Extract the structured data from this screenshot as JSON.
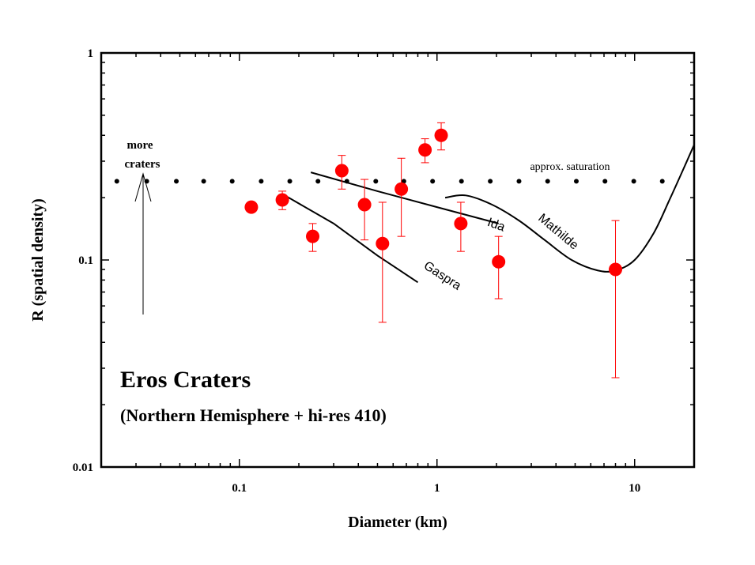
{
  "chart_data": {
    "type": "scatter",
    "title": "Eros Craters",
    "subtitle": "(Northern Hemisphere + hi-res 410)",
    "xlabel": "Diameter (km)",
    "ylabel": "R (spatial density)",
    "x_scale": "log",
    "y_scale": "log",
    "xlim": [
      0.02,
      20
    ],
    "ylim": [
      0.01,
      1
    ],
    "x_ticks": [
      {
        "value": 0.1,
        "label": "0.1"
      },
      {
        "value": 1,
        "label": "1"
      },
      {
        "value": 10,
        "label": "10"
      }
    ],
    "y_ticks": [
      {
        "value": 0.01,
        "label": "0.01"
      },
      {
        "value": 0.1,
        "label": "0.1"
      },
      {
        "value": 1,
        "label": "1"
      }
    ],
    "grid": false,
    "marker_color": "#ff0000",
    "points": [
      {
        "x": 0.115,
        "y": 0.18
      },
      {
        "x": 0.165,
        "y": 0.195,
        "ylo": 0.175,
        "yhi": 0.215
      },
      {
        "x": 0.235,
        "y": 0.13,
        "ylo": 0.11,
        "yhi": 0.15
      },
      {
        "x": 0.33,
        "y": 0.27,
        "ylo": 0.22,
        "yhi": 0.32
      },
      {
        "x": 0.43,
        "y": 0.185,
        "ylo": 0.125,
        "yhi": 0.245
      },
      {
        "x": 0.53,
        "y": 0.12,
        "ylo": 0.05,
        "yhi": 0.19
      },
      {
        "x": 0.66,
        "y": 0.22,
        "ylo": 0.13,
        "yhi": 0.31
      },
      {
        "x": 0.87,
        "y": 0.34,
        "ylo": 0.295,
        "yhi": 0.385
      },
      {
        "x": 1.05,
        "y": 0.4,
        "ylo": 0.34,
        "yhi": 0.46
      },
      {
        "x": 1.32,
        "y": 0.15,
        "ylo": 0.11,
        "yhi": 0.19
      },
      {
        "x": 2.05,
        "y": 0.098,
        "ylo": 0.065,
        "yhi": 0.13
      },
      {
        "x": 8.0,
        "y": 0.09,
        "ylo": 0.027,
        "yhi": 0.155
      }
    ],
    "saturation": {
      "label": "approx. saturation",
      "y": 0.24,
      "x": [
        0.024,
        0.034,
        0.048,
        0.066,
        0.092,
        0.129,
        0.18,
        0.25,
        0.35,
        0.49,
        0.68,
        0.95,
        1.33,
        1.86,
        2.6,
        3.63,
        5.07,
        7.08,
        9.9,
        13.8
      ]
    },
    "reference_curves": [
      {
        "name": "Gaspra",
        "points": [
          [
            0.17,
            0.205
          ],
          [
            0.3,
            0.15
          ],
          [
            0.5,
            0.105
          ],
          [
            0.8,
            0.078
          ]
        ]
      },
      {
        "name": "Ida",
        "points": [
          [
            0.23,
            0.265
          ],
          [
            0.5,
            0.215
          ],
          [
            1.0,
            0.18
          ],
          [
            2.05,
            0.15
          ]
        ]
      },
      {
        "name": "Mathilde",
        "points": [
          [
            1.1,
            0.2
          ],
          [
            1.4,
            0.205
          ],
          [
            1.9,
            0.185
          ],
          [
            2.6,
            0.155
          ],
          [
            3.5,
            0.125
          ],
          [
            4.8,
            0.1
          ],
          [
            6.5,
            0.089
          ],
          [
            8.0,
            0.089
          ],
          [
            10.0,
            0.1
          ],
          [
            12.5,
            0.135
          ],
          [
            15.0,
            0.195
          ],
          [
            17.5,
            0.27
          ],
          [
            20.0,
            0.36
          ]
        ]
      }
    ],
    "annotations": [
      {
        "text1": "more",
        "text2": "craters",
        "arrow": true
      }
    ]
  }
}
